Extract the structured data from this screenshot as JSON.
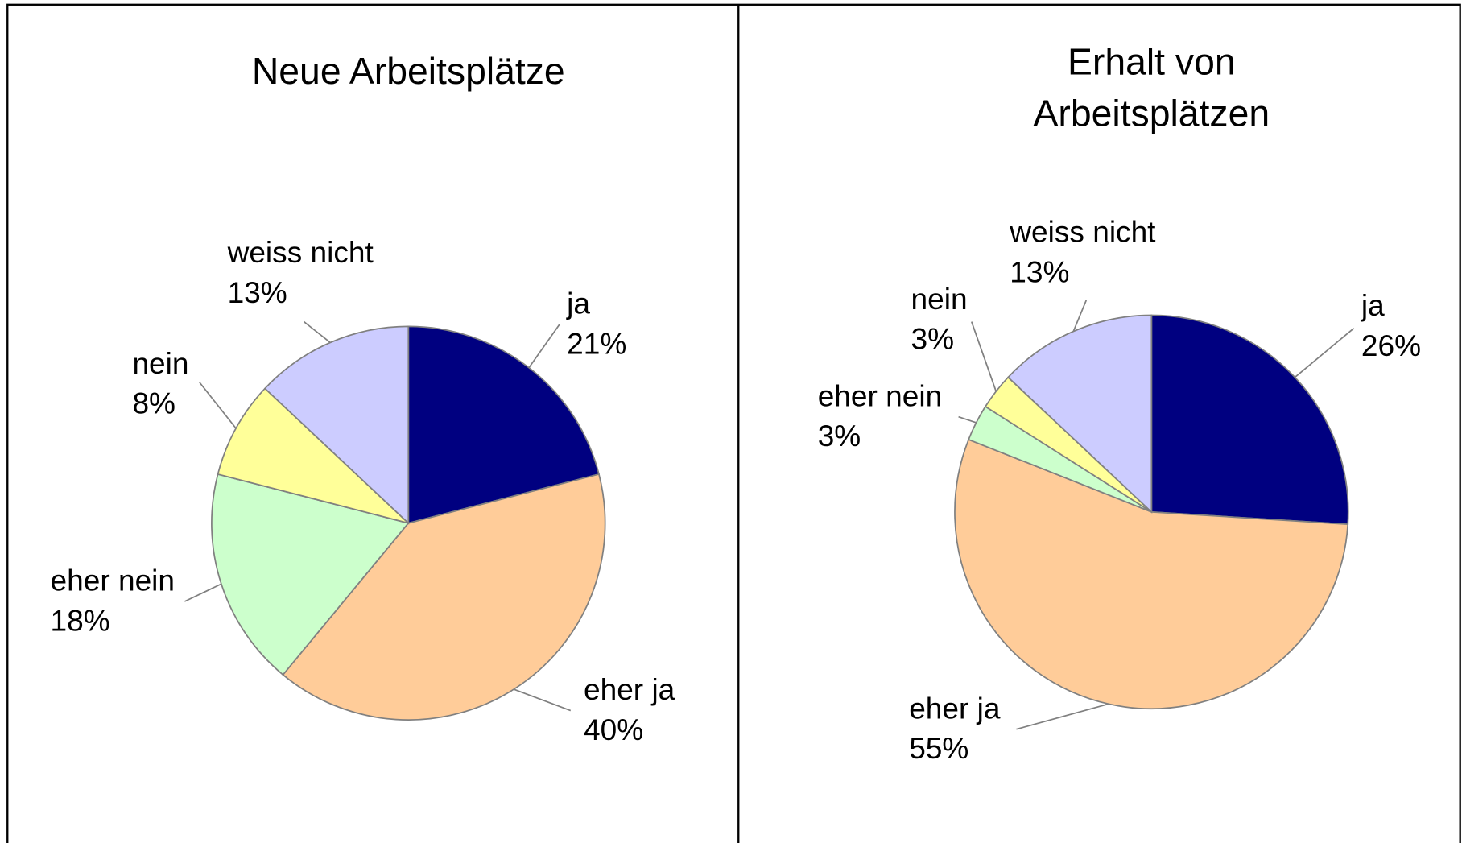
{
  "chart_data": [
    {
      "type": "pie",
      "title": "Neue Arbeitsplätze",
      "categories": [
        "ja",
        "eher ja",
        "eher nein",
        "nein",
        "weiss nicht"
      ],
      "values": [
        21,
        40,
        18,
        8,
        13
      ],
      "value_labels": [
        "21%",
        "40%",
        "18%",
        "8%",
        "13%"
      ],
      "colors": [
        "#000080",
        "#ffcc99",
        "#ccffcc",
        "#ffff99",
        "#ccccff"
      ]
    },
    {
      "type": "pie",
      "title": "Erhalt von Arbeitsplätzen",
      "categories": [
        "ja",
        "eher ja",
        "eher nein",
        "nein",
        "weiss nicht"
      ],
      "values": [
        26,
        55,
        3,
        3,
        13
      ],
      "value_labels": [
        "26%",
        "55%",
        "3%",
        "3%",
        "13%"
      ],
      "colors": [
        "#000080",
        "#ffcc99",
        "#ccffcc",
        "#ffff99",
        "#ccccff"
      ]
    }
  ]
}
